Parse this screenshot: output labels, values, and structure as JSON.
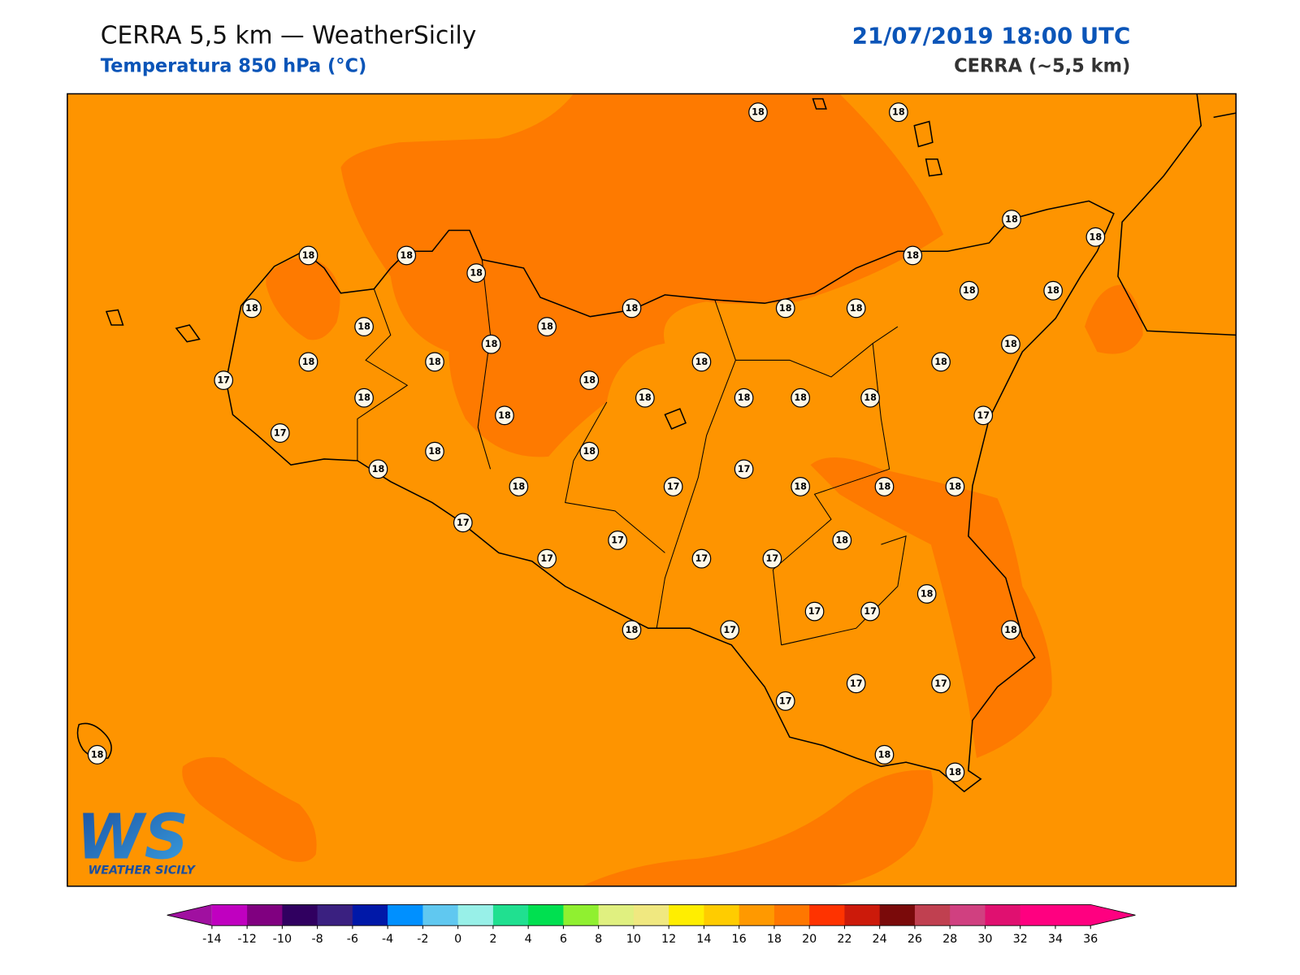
{
  "header": {
    "title": "CERRA 5,5 km — WeatherSicily",
    "subtitle": "Temperatura 850 hPa (°C)",
    "datetime": "21/07/2019 18:00 UTC",
    "source": "CERRA (~5,5 km)"
  },
  "map": {
    "background_color": "#fe9400",
    "shade_color": "#fe7a00",
    "stations": [
      18,
      18,
      18,
      18,
      18,
      18,
      18,
      18,
      18,
      18,
      18,
      18,
      18,
      18,
      18,
      18,
      18,
      18,
      18,
      18,
      18,
      18,
      17,
      18,
      18,
      18,
      18,
      18,
      18,
      18,
      17,
      17,
      18,
      18,
      18,
      17,
      17,
      18,
      18,
      18,
      18,
      17,
      17,
      18,
      17,
      17,
      17,
      18,
      17,
      17,
      18,
      17,
      18,
      17,
      17,
      17,
      18,
      18,
      18
    ]
  },
  "logo": {
    "mark": "WS",
    "text": "WEATHER SICILY"
  },
  "colorbar": {
    "ticks": [
      -14,
      -12,
      -10,
      -8,
      -6,
      -4,
      -2,
      0,
      2,
      4,
      6,
      8,
      10,
      12,
      14,
      16,
      18,
      20,
      22,
      24,
      26,
      28,
      30,
      32,
      34,
      36
    ],
    "under_color": "#a010a0",
    "over_color": "#ff0080",
    "colors": [
      "#c000c0",
      "#800080",
      "#300060",
      "#3a2080",
      "#0018a8",
      "#0090ff",
      "#60c8f0",
      "#98f0e8",
      "#20e090",
      "#00e050",
      "#90f030",
      "#e0f080",
      "#f0e880",
      "#ffee00",
      "#ffcc00",
      "#ff9900",
      "#ff7700",
      "#ff3300",
      "#cc1a0a",
      "#7a0a0a",
      "#c04050",
      "#d04080",
      "#e01070",
      "#ff0080",
      "#ff0080"
    ]
  }
}
